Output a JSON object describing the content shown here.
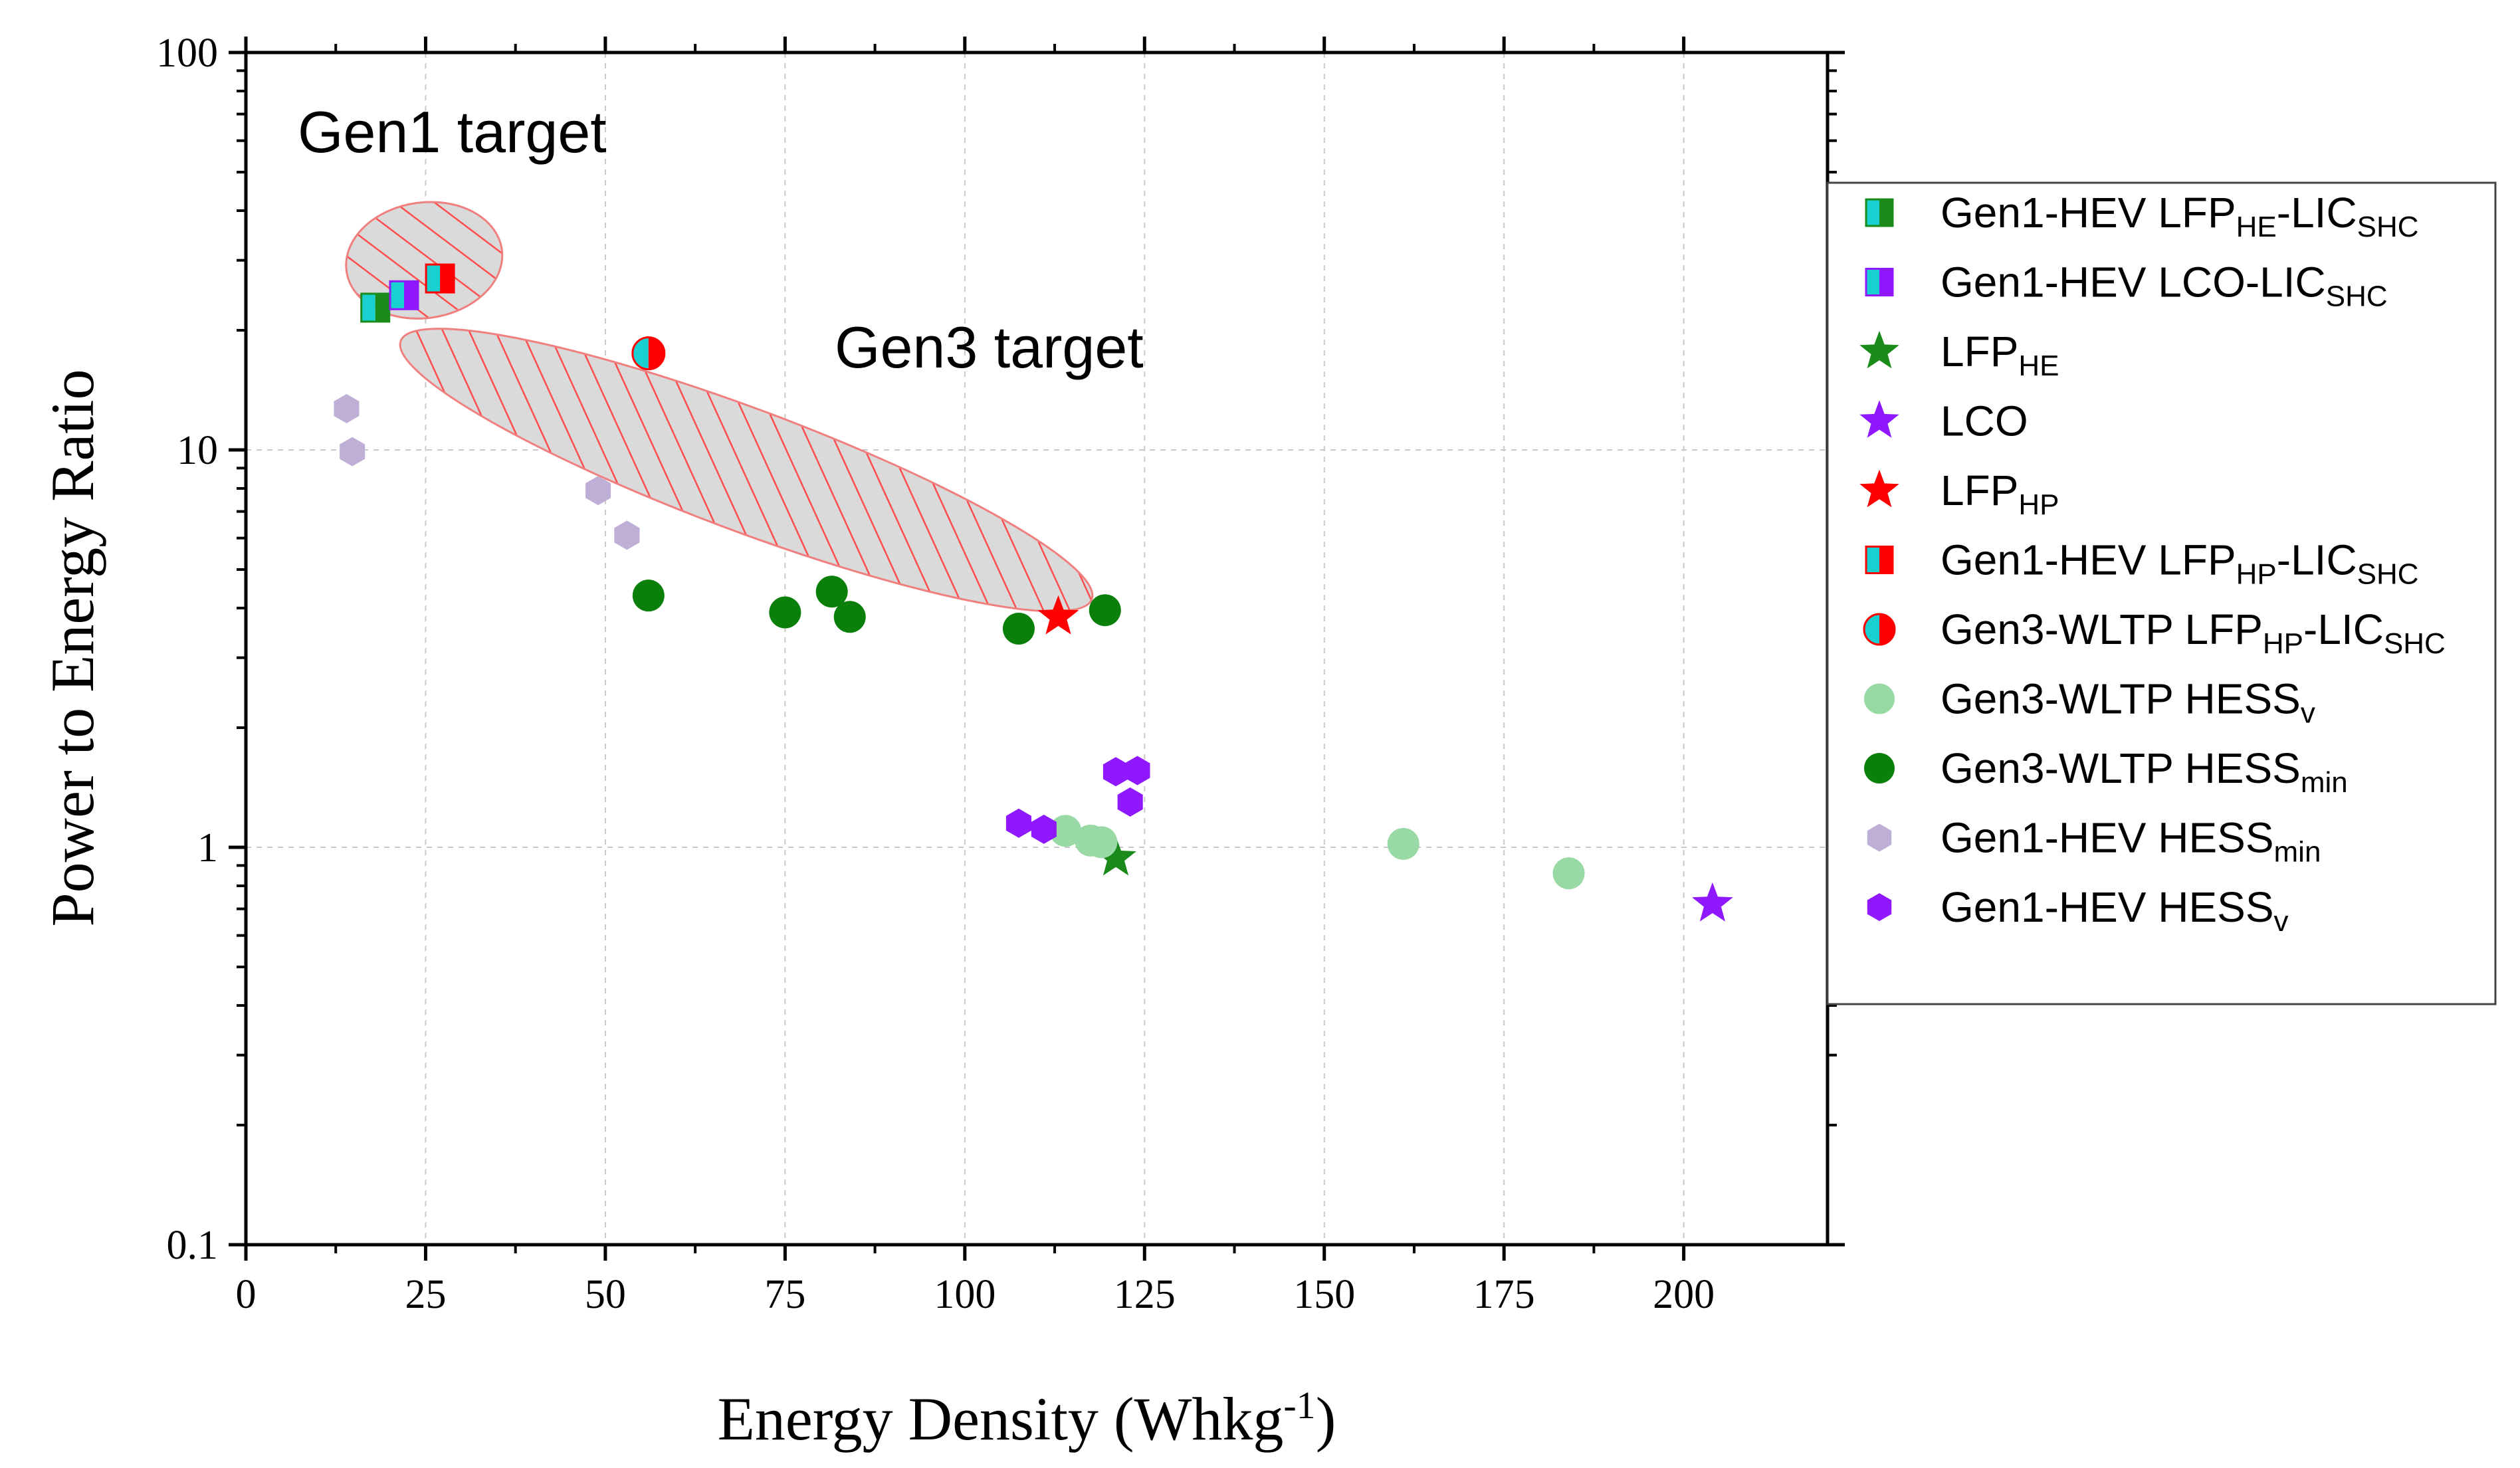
{
  "chart_data": {
    "type": "scatter",
    "xlabel": "Energy Density (Whkg-1)",
    "ylabel": "Power to Energy Ratio",
    "xlim": [
      0,
      220
    ],
    "ylim": [
      0.1,
      100
    ],
    "yscale": "log",
    "grid": true,
    "x_ticks": [
      "0",
      "25",
      "50",
      "75",
      "100",
      "125",
      "150",
      "175",
      "200"
    ],
    "y_ticks": [
      "0.1",
      "1",
      "10",
      "100"
    ],
    "legend_position": "right",
    "annotations": [
      {
        "text": "Gen1 target",
        "x": 7,
        "y": 52
      },
      {
        "text": "Gen3 target",
        "x": 83,
        "y": 19
      }
    ],
    "target_regions": [
      {
        "name": "Gen1 target",
        "center": [
          24.8,
          30
        ],
        "extent": "Energy density about 16 to 38 Whkg-1, ratio about 20 to 45"
      },
      {
        "name": "Gen3 target",
        "center": [
          69.6,
          8.9
        ],
        "extent": "Energy density about 24 to 122 Whkg-1, ratio about 4.5 to 20"
      }
    ],
    "series": [
      {
        "name": "Gen1-HEV LFPHE-LICSHC",
        "label": {
          "main": "Gen1-HEV LFP",
          "sub1": "HE",
          "mid": "-LIC",
          "sub2": "SHC"
        },
        "marker": "half-square",
        "colors": [
          "#18d0d0",
          "#1a8a1a"
        ],
        "points": [
          [
            18,
            22.8
          ]
        ]
      },
      {
        "name": "Gen1-HEV LCO-LICSHC",
        "label": {
          "main": "Gen1-HEV LCO-LIC",
          "sub1": "SHC"
        },
        "marker": "half-square",
        "colors": [
          "#18d0d0",
          "#8f18ff"
        ],
        "points": [
          [
            22,
            24.5
          ]
        ]
      },
      {
        "name": "LFPHE",
        "label": {
          "main": "LFP",
          "sub1": "HE"
        },
        "marker": "star",
        "color": "#1a8a1a",
        "points": [
          [
            121,
            0.94
          ]
        ]
      },
      {
        "name": "LCO",
        "label": {
          "main": "LCO"
        },
        "marker": "star",
        "color": "#8f18ff",
        "points": [
          [
            204,
            0.72
          ]
        ]
      },
      {
        "name": "LFPHP",
        "label": {
          "main": "LFP",
          "sub1": "HP"
        },
        "marker": "star",
        "color": "#ff0000",
        "points": [
          [
            113,
            3.8
          ]
        ]
      },
      {
        "name": "Gen1-HEV LFPHP-LICSHC",
        "label": {
          "main": "Gen1-HEV LFP",
          "sub1": "HP",
          "mid": "-LIC",
          "sub2": "SHC"
        },
        "marker": "half-square",
        "colors": [
          "#18d0d0",
          "#ff0000"
        ],
        "points": [
          [
            27,
            27
          ]
        ]
      },
      {
        "name": "Gen3-WLTP LFPHP-LICSHC",
        "label": {
          "main": "Gen3-WLTP LFP",
          "sub1": "HP",
          "mid": "-LIC",
          "sub2": "SHC"
        },
        "marker": "half-circle",
        "colors": [
          "#18d0d0",
          "#ff0000"
        ],
        "points": [
          [
            56,
            17.5
          ]
        ]
      },
      {
        "name": "Gen3-WLTP HESSv",
        "label": {
          "main": "Gen3-WLTP HESS",
          "sub1": "v"
        },
        "marker": "circle",
        "color": "#98d9a6",
        "points": [
          [
            114,
            1.1
          ],
          [
            117.5,
            1.04
          ],
          [
            119,
            1.03
          ],
          [
            161,
            1.02
          ],
          [
            184,
            0.86
          ]
        ]
      },
      {
        "name": "Gen3-WLTP HESSmin",
        "label": {
          "main": "Gen3-WLTP HESS",
          "sub1": "min"
        },
        "marker": "circle",
        "color": "#0a800a",
        "points": [
          [
            56,
            4.3
          ],
          [
            75,
            3.9
          ],
          [
            81.5,
            4.4
          ],
          [
            84,
            3.8
          ],
          [
            107.5,
            3.55
          ],
          [
            119.5,
            3.95
          ]
        ]
      },
      {
        "name": "Gen1-HEV HESSmin",
        "label": {
          "main": "Gen1-HEV HESS",
          "sub1": "min"
        },
        "marker": "hexagon",
        "color": "#bfaed6",
        "points": [
          [
            14,
            12.7
          ],
          [
            14.8,
            9.9
          ],
          [
            49,
            7.9
          ],
          [
            53,
            6.1
          ]
        ]
      },
      {
        "name": "Gen1-HEV HESSv",
        "label": {
          "main": "Gen1-HEV HESS",
          "sub1": "v"
        },
        "marker": "hexagon",
        "color": "#8f18ff",
        "points": [
          [
            107.5,
            1.15
          ],
          [
            111,
            1.11
          ],
          [
            121,
            1.55
          ],
          [
            124,
            1.56
          ],
          [
            123,
            1.3
          ]
        ]
      }
    ]
  }
}
